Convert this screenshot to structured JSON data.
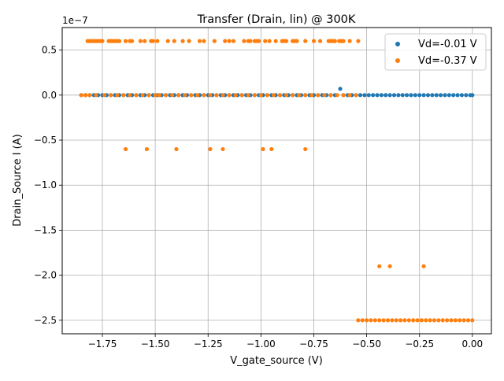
{
  "chart_data": {
    "type": "scatter",
    "title": "Transfer (Drain, lin) @ 300K",
    "xlabel": "V_gate_source (V)",
    "ylabel": "Drain_Source I (A)",
    "y_offset_text": "1e−7",
    "xlim": [
      -1.94,
      0.09
    ],
    "ylim": [
      -2.65,
      0.75
    ],
    "y_scale": 1e-07,
    "xticks": [
      -1.75,
      -1.5,
      -1.25,
      -1.0,
      -0.75,
      -0.5,
      -0.25,
      0.0
    ],
    "xtick_labels": [
      "−1.75",
      "−1.50",
      "−1.25",
      "−1.00",
      "−0.75",
      "−0.50",
      "−0.25",
      "0.00"
    ],
    "yticks": [
      0.5,
      0.0,
      -0.5,
      -1.0,
      -1.5,
      -2.0,
      -2.5
    ],
    "ytick_labels": [
      "0.5",
      "0.0",
      "−0.5",
      "−1.0",
      "−1.5",
      "−2.0",
      "−2.5"
    ],
    "grid": true,
    "legend_position": "upper-right",
    "series": [
      {
        "name": "Vd=-0.01 V",
        "color": "#1f77b4",
        "points": [
          [
            -1.85,
            0.0
          ],
          [
            -1.83,
            0.0
          ],
          [
            -1.81,
            0.0
          ],
          [
            -1.79,
            0.0
          ],
          [
            -1.77,
            0.0
          ],
          [
            -1.75,
            0.0
          ],
          [
            -1.73,
            0.0
          ],
          [
            -1.71,
            0.0
          ],
          [
            -1.69,
            0.0
          ],
          [
            -1.67,
            0.0
          ],
          [
            -1.65,
            0.0
          ],
          [
            -1.63,
            0.0
          ],
          [
            -1.61,
            0.0
          ],
          [
            -1.59,
            0.0
          ],
          [
            -1.57,
            0.0
          ],
          [
            -1.55,
            0.0
          ],
          [
            -1.53,
            0.0
          ],
          [
            -1.51,
            0.0
          ],
          [
            -1.49,
            0.0
          ],
          [
            -1.47,
            0.0
          ],
          [
            -1.45,
            0.0
          ],
          [
            -1.43,
            0.0
          ],
          [
            -1.41,
            0.0
          ],
          [
            -1.39,
            0.0
          ],
          [
            -1.37,
            0.0
          ],
          [
            -1.35,
            0.0
          ],
          [
            -1.33,
            0.0
          ],
          [
            -1.31,
            0.0
          ],
          [
            -1.29,
            0.0
          ],
          [
            -1.27,
            0.0
          ],
          [
            -1.25,
            0.0
          ],
          [
            -1.23,
            0.0
          ],
          [
            -1.21,
            0.0
          ],
          [
            -1.19,
            0.0
          ],
          [
            -1.17,
            0.0
          ],
          [
            -1.15,
            0.0
          ],
          [
            -1.13,
            0.0
          ],
          [
            -1.11,
            0.0
          ],
          [
            -1.09,
            0.0
          ],
          [
            -1.07,
            0.0
          ],
          [
            -1.05,
            0.0
          ],
          [
            -1.03,
            0.0
          ],
          [
            -1.01,
            0.0
          ],
          [
            -0.99,
            0.0
          ],
          [
            -0.97,
            0.0
          ],
          [
            -0.95,
            0.0
          ],
          [
            -0.93,
            0.0
          ],
          [
            -0.91,
            0.0
          ],
          [
            -0.89,
            0.0
          ],
          [
            -0.87,
            0.0
          ],
          [
            -0.85,
            0.0
          ],
          [
            -0.83,
            0.0
          ],
          [
            -0.81,
            0.0
          ],
          [
            -0.79,
            0.0
          ],
          [
            -0.77,
            0.0
          ],
          [
            -0.75,
            0.0
          ],
          [
            -0.73,
            0.0
          ],
          [
            -0.71,
            0.0
          ],
          [
            -0.69,
            0.0
          ],
          [
            -0.67,
            0.0
          ],
          [
            -0.65,
            0.0
          ],
          [
            -0.625,
            0.07
          ],
          [
            -0.61,
            0.0
          ],
          [
            -0.59,
            0.0
          ],
          [
            -0.57,
            0.0
          ],
          [
            -0.55,
            0.0
          ],
          [
            -0.53,
            0.0
          ],
          [
            -0.51,
            0.0
          ],
          [
            -0.49,
            0.0
          ],
          [
            -0.47,
            0.0
          ],
          [
            -0.45,
            0.0
          ],
          [
            -0.43,
            0.0
          ],
          [
            -0.41,
            0.0
          ],
          [
            -0.39,
            0.0
          ],
          [
            -0.37,
            0.0
          ],
          [
            -0.35,
            0.0
          ],
          [
            -0.33,
            0.0
          ],
          [
            -0.31,
            0.0
          ],
          [
            -0.29,
            0.0
          ],
          [
            -0.27,
            0.0
          ],
          [
            -0.25,
            0.0
          ],
          [
            -0.23,
            0.0
          ],
          [
            -0.21,
            0.0
          ],
          [
            -0.19,
            0.0
          ],
          [
            -0.17,
            0.0
          ],
          [
            -0.15,
            0.0
          ],
          [
            -0.13,
            0.0
          ],
          [
            -0.11,
            0.0
          ],
          [
            -0.09,
            0.0
          ],
          [
            -0.07,
            0.0
          ],
          [
            -0.05,
            0.0
          ],
          [
            -0.03,
            0.0
          ],
          [
            -0.01,
            0.0
          ],
          [
            0.0,
            0.0
          ]
        ]
      },
      {
        "name": "Vd=-0.37 V",
        "color": "#ff7f0e",
        "points": [
          [
            -1.85,
            0.0
          ],
          [
            -1.83,
            0.0
          ],
          [
            -1.81,
            0.0
          ],
          [
            -1.78,
            0.0
          ],
          [
            -1.74,
            0.0
          ],
          [
            -1.71,
            0.0
          ],
          [
            -1.68,
            0.0
          ],
          [
            -1.65,
            0.0
          ],
          [
            -1.62,
            0.0
          ],
          [
            -1.59,
            0.0
          ],
          [
            -1.56,
            0.0
          ],
          [
            -1.53,
            0.0
          ],
          [
            -1.5,
            0.0
          ],
          [
            -1.48,
            0.0
          ],
          [
            -1.45,
            0.0
          ],
          [
            -1.42,
            0.0
          ],
          [
            -1.39,
            0.0
          ],
          [
            -1.36,
            0.0
          ],
          [
            -1.33,
            0.0
          ],
          [
            -1.3,
            0.0
          ],
          [
            -1.27,
            0.0
          ],
          [
            -1.24,
            0.0
          ],
          [
            -1.21,
            0.0
          ],
          [
            -1.18,
            0.0
          ],
          [
            -1.15,
            0.0
          ],
          [
            -1.12,
            0.0
          ],
          [
            -1.09,
            0.0
          ],
          [
            -1.06,
            0.0
          ],
          [
            -1.03,
            0.0
          ],
          [
            -1.0,
            0.0
          ],
          [
            -0.97,
            0.0
          ],
          [
            -0.94,
            0.0
          ],
          [
            -0.91,
            0.0
          ],
          [
            -0.88,
            0.0
          ],
          [
            -0.85,
            0.0
          ],
          [
            -0.82,
            0.0
          ],
          [
            -0.79,
            0.0
          ],
          [
            -0.76,
            0.0
          ],
          [
            -0.73,
            0.0
          ],
          [
            -0.7,
            0.0
          ],
          [
            -0.67,
            0.0
          ],
          [
            -0.64,
            0.0
          ],
          [
            -0.61,
            0.0
          ],
          [
            -0.58,
            0.0
          ],
          [
            -0.55,
            0.0
          ],
          [
            -1.82,
            0.6
          ],
          [
            -1.81,
            0.6
          ],
          [
            -1.8,
            0.6
          ],
          [
            -1.79,
            0.6
          ],
          [
            -1.78,
            0.6
          ],
          [
            -1.77,
            0.6
          ],
          [
            -1.76,
            0.6
          ],
          [
            -1.75,
            0.6
          ],
          [
            -1.72,
            0.6
          ],
          [
            -1.71,
            0.6
          ],
          [
            -1.7,
            0.6
          ],
          [
            -1.69,
            0.6
          ],
          [
            -1.68,
            0.6
          ],
          [
            -1.67,
            0.6
          ],
          [
            -1.64,
            0.6
          ],
          [
            -1.62,
            0.6
          ],
          [
            -1.61,
            0.6
          ],
          [
            -1.57,
            0.6
          ],
          [
            -1.55,
            0.6
          ],
          [
            -1.52,
            0.6
          ],
          [
            -1.51,
            0.6
          ],
          [
            -1.49,
            0.6
          ],
          [
            -1.44,
            0.6
          ],
          [
            -1.41,
            0.6
          ],
          [
            -1.37,
            0.6
          ],
          [
            -1.34,
            0.6
          ],
          [
            -1.29,
            0.6
          ],
          [
            -1.27,
            0.6
          ],
          [
            -1.22,
            0.6
          ],
          [
            -1.17,
            0.6
          ],
          [
            -1.15,
            0.6
          ],
          [
            -1.13,
            0.6
          ],
          [
            -1.08,
            0.6
          ],
          [
            -1.06,
            0.6
          ],
          [
            -1.05,
            0.6
          ],
          [
            -1.03,
            0.6
          ],
          [
            -1.02,
            0.6
          ],
          [
            -1.01,
            0.6
          ],
          [
            -0.98,
            0.6
          ],
          [
            -0.96,
            0.6
          ],
          [
            -0.93,
            0.6
          ],
          [
            -0.9,
            0.6
          ],
          [
            -0.89,
            0.6
          ],
          [
            -0.88,
            0.6
          ],
          [
            -0.85,
            0.6
          ],
          [
            -0.84,
            0.6
          ],
          [
            -0.83,
            0.6
          ],
          [
            -0.79,
            0.6
          ],
          [
            -0.75,
            0.6
          ],
          [
            -0.72,
            0.6
          ],
          [
            -0.68,
            0.6
          ],
          [
            -0.67,
            0.6
          ],
          [
            -0.66,
            0.6
          ],
          [
            -0.65,
            0.6
          ],
          [
            -0.63,
            0.6
          ],
          [
            -0.62,
            0.6
          ],
          [
            -0.61,
            0.6
          ],
          [
            -0.58,
            0.6
          ],
          [
            -0.54,
            0.6
          ],
          [
            -1.64,
            -0.6
          ],
          [
            -1.54,
            -0.6
          ],
          [
            -1.4,
            -0.6
          ],
          [
            -1.24,
            -0.6
          ],
          [
            -1.18,
            -0.6
          ],
          [
            -0.99,
            -0.6
          ],
          [
            -0.95,
            -0.6
          ],
          [
            -0.79,
            -0.6
          ],
          [
            -0.44,
            -1.9
          ],
          [
            -0.39,
            -1.9
          ],
          [
            -0.23,
            -1.9
          ],
          [
            -0.54,
            -2.5
          ],
          [
            -0.52,
            -2.5
          ],
          [
            -0.5,
            -2.5
          ],
          [
            -0.48,
            -2.5
          ],
          [
            -0.46,
            -2.5
          ],
          [
            -0.44,
            -2.5
          ],
          [
            -0.42,
            -2.5
          ],
          [
            -0.4,
            -2.5
          ],
          [
            -0.38,
            -2.5
          ],
          [
            -0.36,
            -2.5
          ],
          [
            -0.34,
            -2.5
          ],
          [
            -0.32,
            -2.5
          ],
          [
            -0.3,
            -2.5
          ],
          [
            -0.28,
            -2.5
          ],
          [
            -0.26,
            -2.5
          ],
          [
            -0.24,
            -2.5
          ],
          [
            -0.22,
            -2.5
          ],
          [
            -0.2,
            -2.5
          ],
          [
            -0.18,
            -2.5
          ],
          [
            -0.16,
            -2.5
          ],
          [
            -0.14,
            -2.5
          ],
          [
            -0.12,
            -2.5
          ],
          [
            -0.1,
            -2.5
          ],
          [
            -0.08,
            -2.5
          ],
          [
            -0.06,
            -2.5
          ],
          [
            -0.04,
            -2.5
          ],
          [
            -0.02,
            -2.5
          ],
          [
            0.0,
            -2.5
          ]
        ]
      }
    ]
  }
}
